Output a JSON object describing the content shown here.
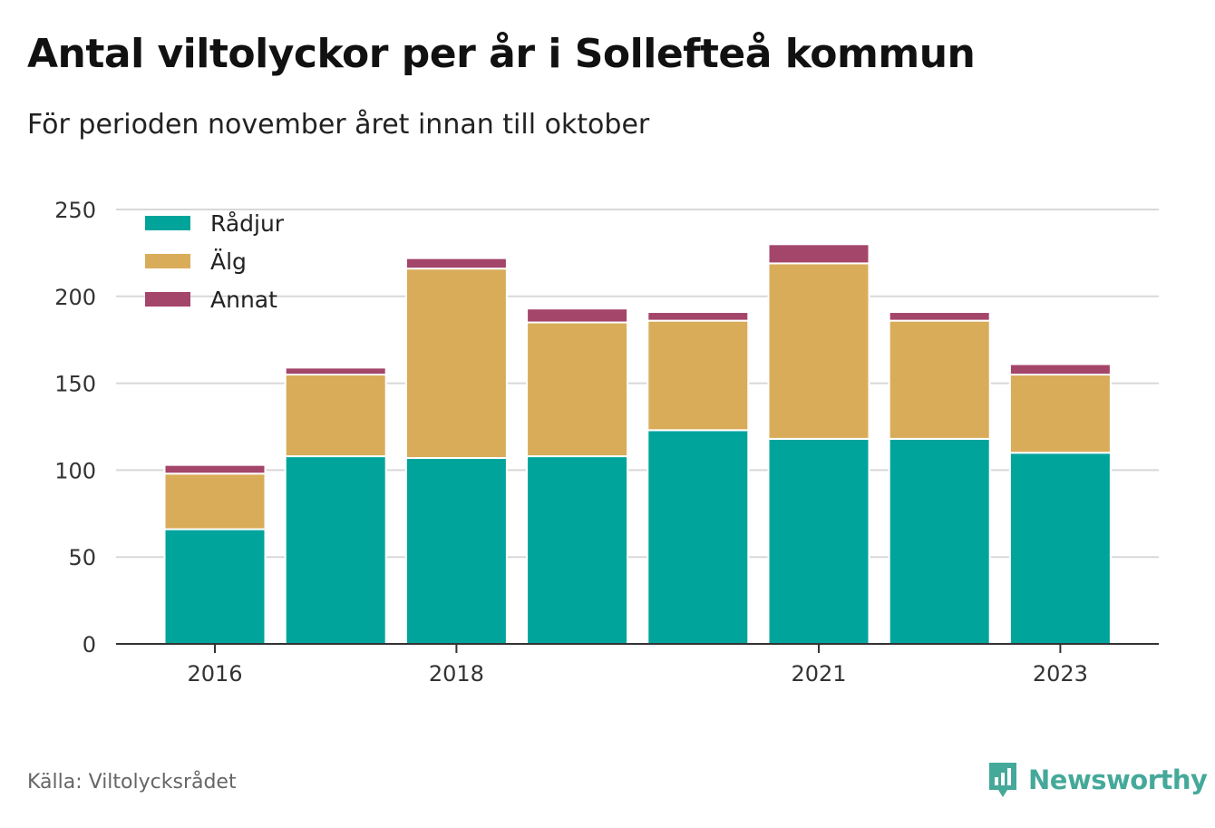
{
  "title": "Antal viltolyckor per år i Sollefteå kommun",
  "subtitle": "För perioden november året innan till oktober",
  "source": "Källa: Viltolycksrådet",
  "brand": "Newsworthy",
  "colors": {
    "radjur": "#00a49b",
    "alg": "#d9ac5a",
    "annat": "#a4456a",
    "grid": "#d8d8d8",
    "axis": "#333333",
    "brand": "#45a99a"
  },
  "chart_data": {
    "type": "bar",
    "stacked": true,
    "categories": [
      "2016",
      "2017",
      "2018",
      "2019",
      "2020",
      "2021",
      "2022",
      "2023"
    ],
    "x_tick_labels": [
      "2016",
      "",
      "2018",
      "",
      "",
      "2021",
      "",
      "2023"
    ],
    "series": [
      {
        "name": "Rådjur",
        "color": "#00a49b",
        "values": [
          66,
          108,
          107,
          108,
          123,
          118,
          118,
          110
        ]
      },
      {
        "name": "Älg",
        "color": "#d9ac5a",
        "values": [
          32,
          47,
          109,
          77,
          63,
          101,
          68,
          45
        ]
      },
      {
        "name": "Annat",
        "color": "#a4456a",
        "values": [
          5,
          4,
          6,
          8,
          5,
          11,
          5,
          6
        ]
      }
    ],
    "ylim": [
      0,
      250
    ],
    "yticks": [
      0,
      50,
      100,
      150,
      200,
      250
    ],
    "grid": true,
    "legend_position": "top-left"
  }
}
